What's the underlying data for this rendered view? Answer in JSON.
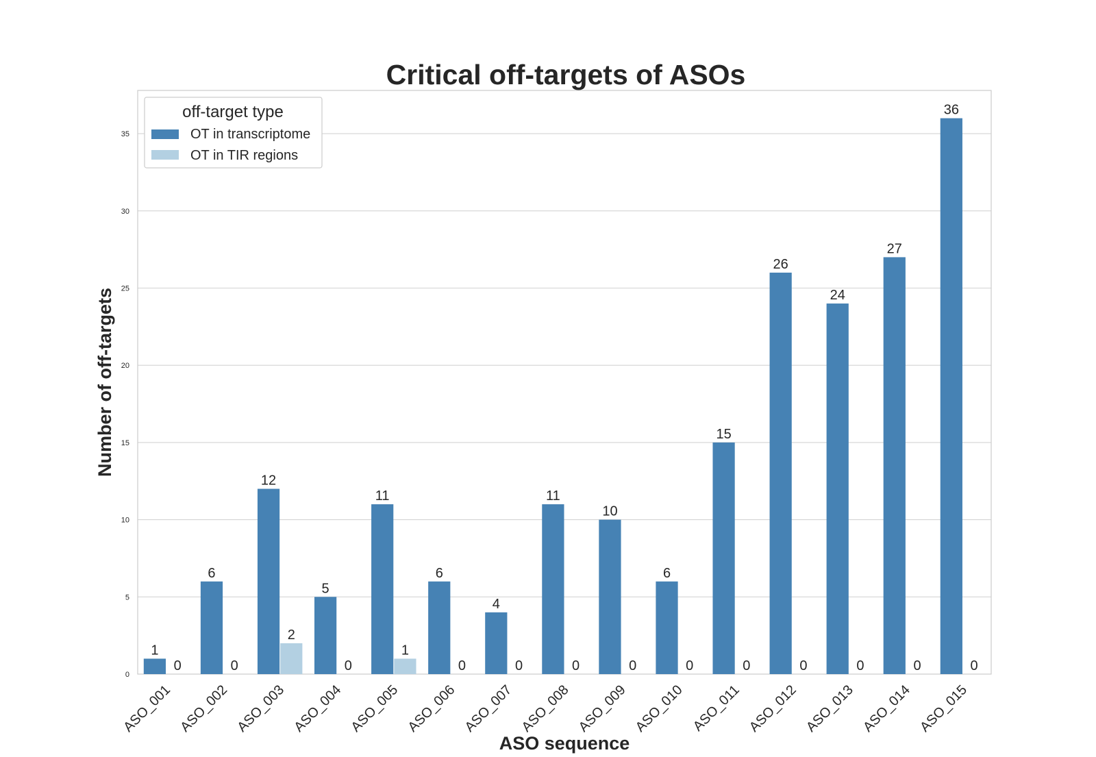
{
  "chart_data": {
    "type": "bar",
    "title": "Critical off-targets of ASOs",
    "xlabel": "ASO sequence",
    "ylabel": "Number of off-targets",
    "categories": [
      "ASO_001",
      "ASO_002",
      "ASO_003",
      "ASO_004",
      "ASO_005",
      "ASO_006",
      "ASO_007",
      "ASO_008",
      "ASO_009",
      "ASO_010",
      "ASO_011",
      "ASO_012",
      "ASO_013",
      "ASO_014",
      "ASO_015"
    ],
    "series": [
      {
        "name": "OT in transcriptome",
        "color": "#4682b4",
        "values": [
          1,
          6,
          12,
          5,
          11,
          6,
          4,
          11,
          10,
          6,
          15,
          26,
          24,
          27,
          36
        ]
      },
      {
        "name": "OT in TIR regions",
        "color": "#b3d0e2",
        "values": [
          0,
          0,
          2,
          0,
          1,
          0,
          0,
          0,
          0,
          0,
          0,
          0,
          0,
          0,
          0
        ]
      }
    ],
    "ylim": [
      0,
      37.8
    ],
    "yticks": [
      0,
      5,
      10,
      15,
      20,
      25,
      30,
      35
    ],
    "grid": true,
    "legend": {
      "title": "off-target type",
      "position": "top-left"
    }
  }
}
